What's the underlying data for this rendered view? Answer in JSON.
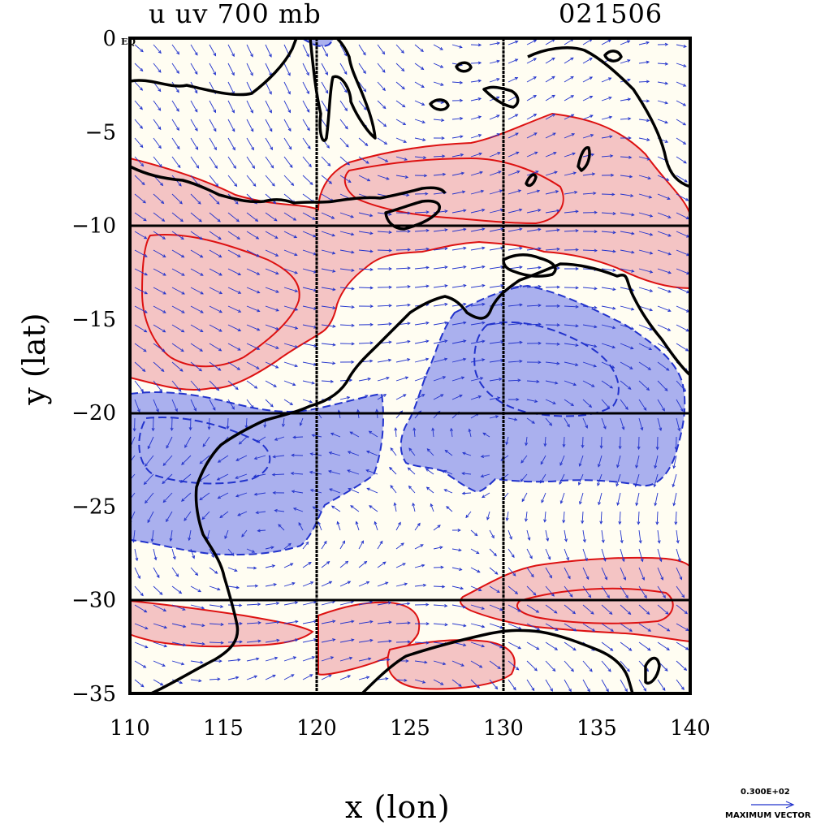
{
  "title_left": "u uv 700 mb",
  "title_right": "021506",
  "xlabel": "x (lon)",
  "ylabel": "y (lat)",
  "eq_label": "EQ",
  "x_ticks": [
    "110",
    "115",
    "120",
    "125",
    "130",
    "135",
    "140"
  ],
  "y_ticks": [
    "0",
    "−5",
    "−10",
    "−15",
    "−20",
    "−25",
    "−30",
    "−35"
  ],
  "vector_legend": {
    "value": "0.300E+02",
    "label": "MAXIMUM VECTOR"
  },
  "colors": {
    "positive_fill": "#f4c4c4",
    "positive_line": "#dd1111",
    "negative_fill": "#aab0ee",
    "negative_line": "#2233cc",
    "coast": "#000000",
    "vector": "#2233cc",
    "background": "#fffdf2"
  },
  "chart_data": {
    "type": "map",
    "xlim": [
      110,
      140
    ],
    "ylim": [
      -35,
      0
    ],
    "grid_lines": {
      "lon": [
        120,
        130
      ],
      "lat": [
        -10,
        -20,
        -30
      ]
    },
    "fields": [
      "u (shaded, red positive / blue negative)",
      "uv wind vectors"
    ],
    "level": "700 mb"
  }
}
